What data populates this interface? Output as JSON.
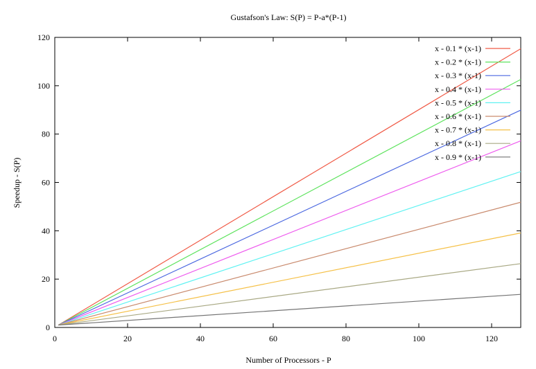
{
  "chart_data": {
    "type": "line",
    "title": "Gustafson's Law: S(P) = P-a*(P-1)",
    "xlabel": "Number of Processors - P",
    "ylabel": "Speedup - S(P)",
    "xlim": [
      0,
      128
    ],
    "ylim": [
      0,
      120
    ],
    "xticks": [
      "0",
      "20",
      "40",
      "60",
      "80",
      "100",
      "120"
    ],
    "yticks": [
      "0",
      "20",
      "40",
      "60",
      "80",
      "100",
      "120"
    ],
    "grid": false,
    "legend_position": "top-right",
    "x": [
      1,
      128
    ],
    "series": [
      {
        "name": "x - 0.1 * (x-1)",
        "color": "#f05a46",
        "values": [
          1,
          115.3
        ]
      },
      {
        "name": "x - 0.2 * (x-1)",
        "color": "#5ee35e",
        "values": [
          1,
          102.6
        ]
      },
      {
        "name": "x - 0.3 * (x-1)",
        "color": "#4a67e0",
        "values": [
          1,
          89.9
        ]
      },
      {
        "name": "x - 0.4 * (x-1)",
        "color": "#ee5bee",
        "values": [
          1,
          77.2
        ]
      },
      {
        "name": "x - 0.5 * (x-1)",
        "color": "#5ff2f2",
        "values": [
          1,
          64.5
        ]
      },
      {
        "name": "x - 0.6 * (x-1)",
        "color": "#c98a6d",
        "values": [
          1,
          51.8
        ]
      },
      {
        "name": "x - 0.7 * (x-1)",
        "color": "#f5c046",
        "values": [
          1,
          39.1
        ]
      },
      {
        "name": "x - 0.8 * (x-1)",
        "color": "#a8a883",
        "values": [
          1,
          26.4
        ]
      },
      {
        "name": "x - 0.9 * (x-1)",
        "color": "#737373",
        "values": [
          1,
          13.7
        ]
      }
    ]
  }
}
